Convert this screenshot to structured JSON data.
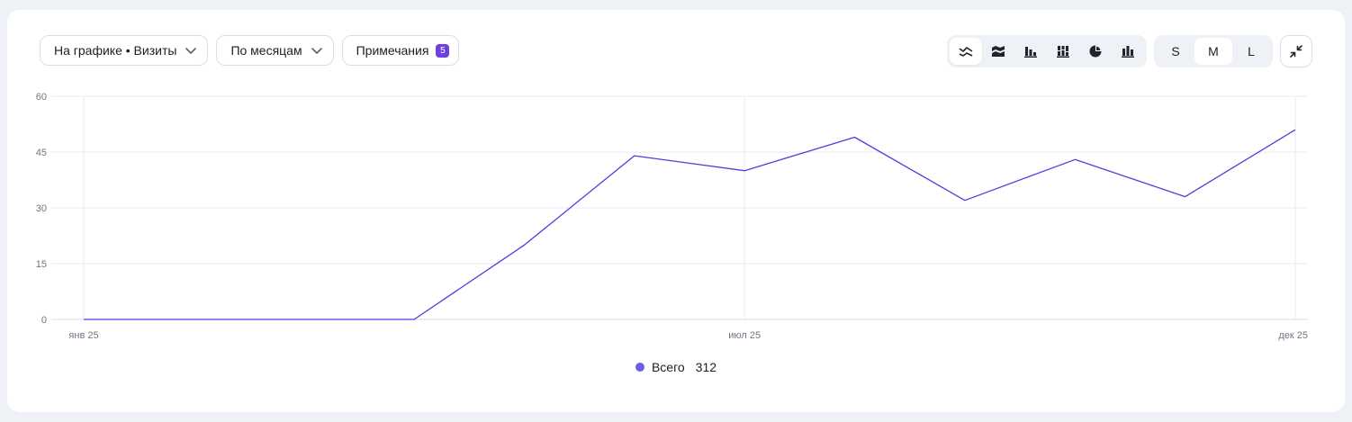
{
  "toolbar": {
    "metric_select": "На графике • Визиты",
    "period_select": "По месяцам",
    "notes_label": "Примечания",
    "notes_count": "5",
    "chart_types": [
      {
        "icon": "line-chart-icon",
        "active": true
      },
      {
        "icon": "area-chart-icon",
        "active": false
      },
      {
        "icon": "bar-chart-icon",
        "active": false
      },
      {
        "icon": "stacked-bar-chart-icon",
        "active": false
      },
      {
        "icon": "pie-chart-icon",
        "active": false
      },
      {
        "icon": "column-chart-icon",
        "active": false
      }
    ],
    "sizes": {
      "s": "S",
      "m": "M",
      "l": "L",
      "active": "M"
    },
    "collapse_icon": "collapse-icon"
  },
  "colors": {
    "series": "#4a3fe0",
    "legend_dot": "#6b5de6",
    "badge": "#6c3fe0",
    "grid": "#e8ebf0"
  },
  "legend": {
    "label": "Всего",
    "value": "312"
  },
  "chart_data": {
    "type": "line",
    "title": "",
    "xlabel": "",
    "ylabel": "",
    "ylim": [
      0,
      60
    ],
    "yticks": [
      0,
      15,
      30,
      45,
      60
    ],
    "x": [
      "2025-01",
      "2025-02",
      "2025-03",
      "2025-04",
      "2025-05",
      "2025-06",
      "2025-07",
      "2025-08",
      "2025-09",
      "2025-10",
      "2025-11",
      "2025-12"
    ],
    "xtick_labels": [
      {
        "index": 0,
        "label": "янв 25"
      },
      {
        "index": 6,
        "label": "июл 25"
      },
      {
        "index": 11,
        "label": "дек 25"
      }
    ],
    "series": [
      {
        "name": "Всего",
        "values": [
          0,
          0,
          0,
          0,
          20,
          44,
          40,
          49,
          32,
          43,
          33,
          51
        ]
      }
    ],
    "grid": true,
    "legend_position": "bottom-center"
  }
}
